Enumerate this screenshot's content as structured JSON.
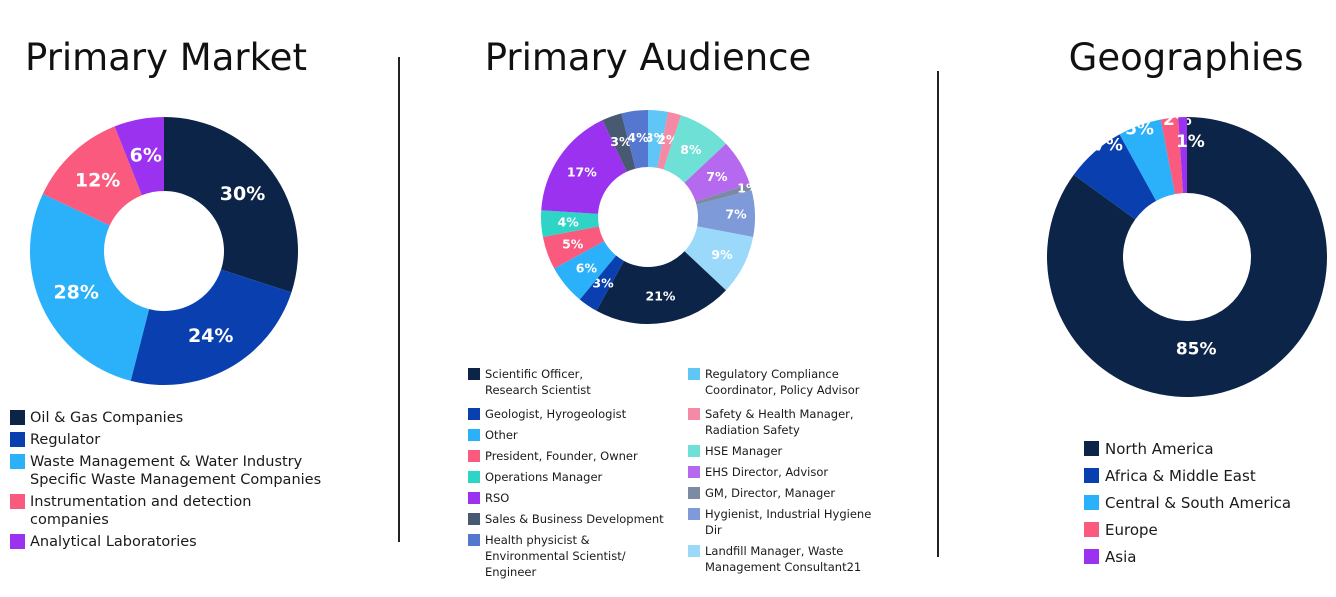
{
  "colors": {
    "navy": "#0b2447",
    "blue": "#0a3fb0",
    "sky": "#2bb0fa",
    "pink": "#fa5a7d",
    "purple": "#9b32f0",
    "slate": "#485a72",
    "cornflower": "#5577cf",
    "lightsky": "#5fc6f5",
    "lightpink": "#f58aa6",
    "mint": "#6fe0d6",
    "lavender": "#b469ef",
    "gray": "#7c8aa3",
    "periwinkle": "#7e9ad8",
    "pale": "#9ad9f9",
    "teal": "#2ed4c6"
  },
  "chart_data": [
    {
      "type": "pie",
      "variant": "donut",
      "title": "Primary Market",
      "slices": [
        {
          "label": "Oil & Gas Companies",
          "value": 30,
          "text": "30%",
          "color": "#0b2447"
        },
        {
          "label": "Regulator",
          "value": 24,
          "text": "24%",
          "color": "#0a3fb0"
        },
        {
          "label": "Waste Management & Water Industry\nSpecific Waste Management Companies",
          "value": 28,
          "text": "28%",
          "color": "#2bb0fa"
        },
        {
          "label": "Instrumentation and detection\ncompanies",
          "value": 12,
          "text": "12%",
          "color": "#fa5a7d"
        },
        {
          "label": "Analytical Laboratories",
          "value": 6,
          "text": "6%",
          "color": "#9b32f0"
        }
      ],
      "legend": [
        "Oil & Gas Companies",
        "Regulator",
        "Waste Management & Water Industry\nSpecific Waste Management Companies",
        "Instrumentation and detection\ncompanies",
        "Analytical Laboratories"
      ]
    },
    {
      "type": "pie",
      "variant": "donut",
      "title": "Primary Audience",
      "slices": [
        {
          "label": "Regulatory Compliance\nCoordinator, Policy Advisor",
          "value": 3,
          "text": "3%",
          "color": "#5fc6f5"
        },
        {
          "label": "Safety & Health Manager,\nRadiation Safety",
          "value": 2,
          "text": "2%",
          "color": "#f58aa6"
        },
        {
          "label": "HSE Manager",
          "value": 8,
          "text": "8%",
          "color": "#6fe0d6"
        },
        {
          "label": "EHS Director, Advisor",
          "value": 7,
          "text": "7%",
          "color": "#b469ef"
        },
        {
          "label": "GM, Director, Manager",
          "value": 1,
          "text": "1%",
          "color": "#7c8aa3"
        },
        {
          "label": "Hygienist, Industrial Hygiene Dir",
          "value": 7,
          "text": "7%",
          "color": "#7e9ad8"
        },
        {
          "label": "Landfill Manager, Waste\nManagement Consultant21",
          "value": 9,
          "text": "9%",
          "color": "#9ad9f9"
        },
        {
          "label": "Scientific Officer,\nResearch Scientist",
          "value": 21,
          "text": "21%",
          "color": "#0b2447"
        },
        {
          "label": "Geologist, Hyrogeologist",
          "value": 3,
          "text": "3%",
          "color": "#0a3fb0"
        },
        {
          "label": "Other",
          "value": 6,
          "text": "6%",
          "color": "#2bb0fa"
        },
        {
          "label": "President, Founder, Owner",
          "value": 5,
          "text": "5%",
          "color": "#fa5a7d"
        },
        {
          "label": "Operations Manager",
          "value": 4,
          "text": "4%",
          "color": "#2ed4c6"
        },
        {
          "label": "RSO",
          "value": 17,
          "text": "17%",
          "color": "#9b32f0"
        },
        {
          "label": "Sales & Business Development",
          "value": 3,
          "text": "3%",
          "color": "#485a72"
        },
        {
          "label": "Health physicist &\nEnvironmental Scientist/\nEngineer",
          "value": 4,
          "text": "4%",
          "color": "#5577cf"
        }
      ],
      "legend_left": [
        {
          "label": "Scientific Officer,\nResearch Scientist",
          "color": "#0b2447"
        },
        {
          "label": "Geologist, Hyrogeologist",
          "color": "#0a3fb0"
        },
        {
          "label": "Other",
          "color": "#2bb0fa"
        },
        {
          "label": "President, Founder, Owner",
          "color": "#fa5a7d"
        },
        {
          "label": "Operations Manager",
          "color": "#2ed4c6"
        },
        {
          "label": "RSO",
          "color": "#9b32f0"
        },
        {
          "label": "Sales & Business Development",
          "color": "#485a72"
        },
        {
          "label": "Health physicist &\nEnvironmental Scientist/\nEngineer",
          "color": "#5577cf"
        }
      ],
      "legend_right": [
        {
          "label": "Regulatory Compliance\nCoordinator, Policy Advisor",
          "color": "#5fc6f5"
        },
        {
          "label": "Safety & Health Manager,\nRadiation Safety",
          "color": "#f58aa6"
        },
        {
          "label": "HSE Manager",
          "color": "#6fe0d6"
        },
        {
          "label": "EHS Director, Advisor",
          "color": "#b469ef"
        },
        {
          "label": "GM, Director, Manager",
          "color": "#7c8aa3"
        },
        {
          "label": "Hygienist, Industrial Hygiene Dir",
          "color": "#7e9ad8"
        },
        {
          "label": "Landfill Manager, Waste\nManagement Consultant21",
          "color": "#9ad9f9"
        }
      ]
    },
    {
      "type": "pie",
      "variant": "donut",
      "title": "Geographies",
      "slices": [
        {
          "label": "North America",
          "value": 85,
          "text": "85%",
          "color": "#0b2447"
        },
        {
          "label": "Africa & Middle East",
          "value": 7,
          "text": "7%",
          "color": "#0a3fb0"
        },
        {
          "label": "Central & South America",
          "value": 5,
          "text": "5%",
          "color": "#2bb0fa"
        },
        {
          "label": "Europe",
          "value": 2,
          "text": "2%",
          "color": "#fa5a7d"
        },
        {
          "label": "Asia",
          "value": 1,
          "text": "1%",
          "color": "#9b32f0"
        }
      ],
      "legend": [
        "North America",
        "Africa & Middle East",
        "Central & South America",
        "Europe",
        "Asia"
      ]
    }
  ]
}
